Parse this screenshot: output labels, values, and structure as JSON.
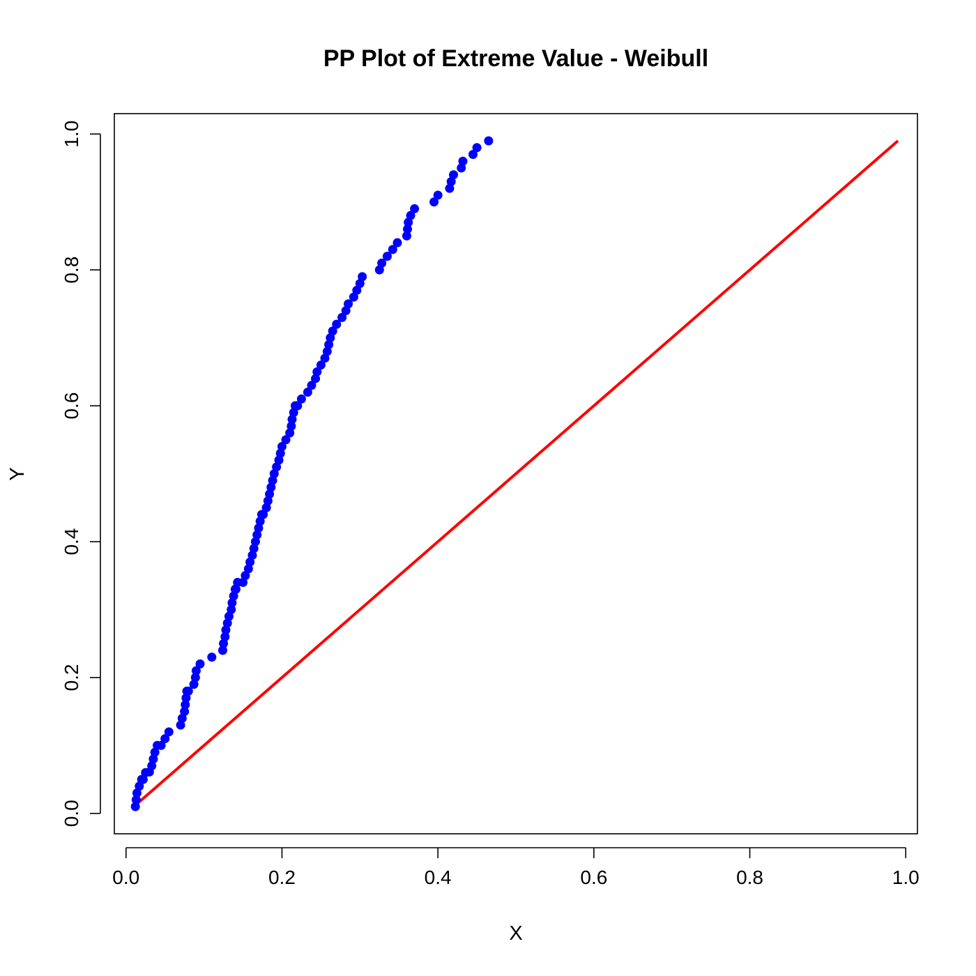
{
  "chart_data": {
    "type": "scatter",
    "title": "PP Plot of Extreme Value - Weibull",
    "xlabel": "X",
    "ylabel": "Y",
    "xlim": [
      -0.015,
      1.015
    ],
    "ylim": [
      -0.03,
      1.03
    ],
    "xticks": [
      "0.0",
      "0.2",
      "0.4",
      "0.6",
      "0.8",
      "1.0"
    ],
    "yticks": [
      "0.0",
      "0.2",
      "0.4",
      "0.6",
      "0.8",
      "1.0"
    ],
    "grid": false,
    "colors": {
      "points": "#0000ff",
      "reference_line": "#ff0000"
    },
    "reference_line": {
      "x": [
        0.01,
        0.99
      ],
      "y": [
        0.01,
        0.99
      ]
    },
    "points": {
      "x": [
        0.012,
        0.013,
        0.014,
        0.017,
        0.02,
        0.022,
        0.025,
        0.03,
        0.033,
        0.035,
        0.037,
        0.04,
        0.045,
        0.05,
        0.055,
        0.07,
        0.072,
        0.075,
        0.076,
        0.077,
        0.078,
        0.08,
        0.087,
        0.089,
        0.09,
        0.095,
        0.11,
        0.124,
        0.125,
        0.127,
        0.128,
        0.13,
        0.132,
        0.135,
        0.136,
        0.138,
        0.14,
        0.141,
        0.143,
        0.15,
        0.153,
        0.157,
        0.159,
        0.162,
        0.164,
        0.166,
        0.168,
        0.17,
        0.172,
        0.174,
        0.176,
        0.18,
        0.182,
        0.184,
        0.186,
        0.188,
        0.19,
        0.193,
        0.196,
        0.198,
        0.2,
        0.205,
        0.21,
        0.212,
        0.213,
        0.215,
        0.217,
        0.22,
        0.225,
        0.233,
        0.238,
        0.243,
        0.245,
        0.25,
        0.255,
        0.258,
        0.26,
        0.262,
        0.265,
        0.27,
        0.277,
        0.282,
        0.285,
        0.292,
        0.296,
        0.3,
        0.303,
        0.325,
        0.328,
        0.335,
        0.342,
        0.348,
        0.36,
        0.361,
        0.362,
        0.365,
        0.37,
        0.395,
        0.4,
        0.415,
        0.417,
        0.42,
        0.43,
        0.432,
        0.445,
        0.45,
        0.465
      ],
      "y": [
        0.01,
        0.02,
        0.03,
        0.04,
        0.05,
        0.05,
        0.06,
        0.061,
        0.07,
        0.08,
        0.09,
        0.1,
        0.1,
        0.11,
        0.12,
        0.13,
        0.14,
        0.15,
        0.16,
        0.17,
        0.18,
        0.18,
        0.19,
        0.2,
        0.21,
        0.22,
        0.23,
        0.24,
        0.25,
        0.26,
        0.27,
        0.28,
        0.29,
        0.3,
        0.31,
        0.32,
        0.33,
        0.33,
        0.34,
        0.34,
        0.35,
        0.36,
        0.37,
        0.38,
        0.39,
        0.4,
        0.41,
        0.42,
        0.43,
        0.44,
        0.44,
        0.45,
        0.46,
        0.47,
        0.48,
        0.49,
        0.5,
        0.51,
        0.52,
        0.53,
        0.54,
        0.55,
        0.56,
        0.57,
        0.58,
        0.59,
        0.6,
        0.6,
        0.61,
        0.62,
        0.63,
        0.64,
        0.65,
        0.66,
        0.67,
        0.68,
        0.69,
        0.7,
        0.71,
        0.72,
        0.73,
        0.74,
        0.75,
        0.76,
        0.77,
        0.78,
        0.79,
        0.8,
        0.81,
        0.82,
        0.83,
        0.84,
        0.85,
        0.86,
        0.87,
        0.88,
        0.89,
        0.9,
        0.91,
        0.92,
        0.93,
        0.94,
        0.95,
        0.96,
        0.97,
        0.98,
        0.99
      ]
    }
  }
}
